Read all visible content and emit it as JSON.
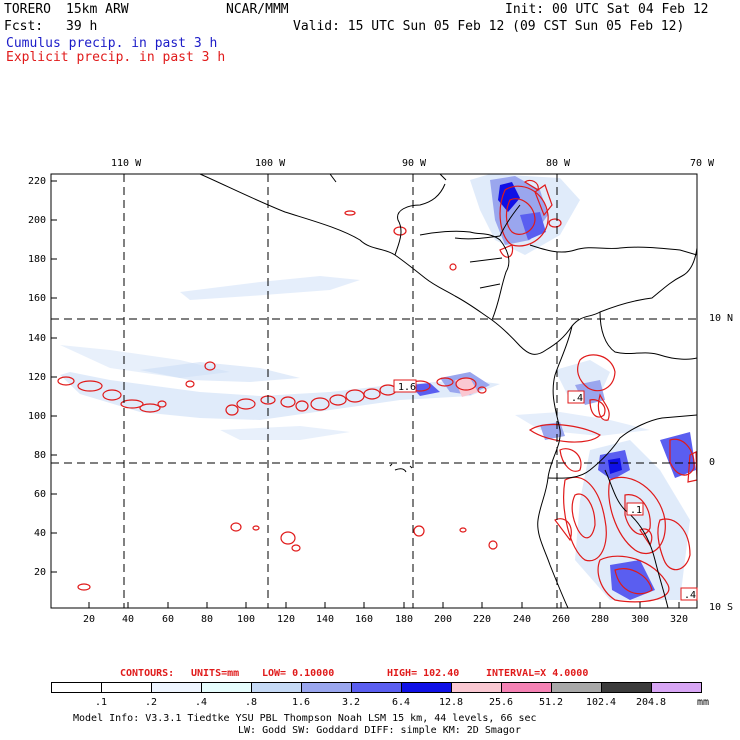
{
  "header": {
    "model": "TORERO",
    "resolution": "15km ARW",
    "org": "NCAR/MMM",
    "init": "Init: 00 UTC Sat 04 Feb 12",
    "fcst_label": "Fcst:",
    "fcst_value": "39 h",
    "valid": "Valid: 15 UTC Sun 05 Feb 12 (09 CST Sun 05 Feb 12)",
    "line_cumulus": "Cumulus precip. in past 3 h",
    "line_explicit": "Explicit precip. in past 3 h"
  },
  "axes": {
    "top_lon_labels": [
      "110 W",
      "100 W",
      "90 W",
      "80 W",
      "70 W"
    ],
    "right_lat_labels": [
      "10 N",
      "0",
      "10 S"
    ],
    "left_y_ticks": [
      "220",
      "200",
      "180",
      "160",
      "140",
      "120",
      "100",
      "80",
      "60",
      "40",
      "20"
    ],
    "bottom_x_ticks": [
      "20",
      "40",
      "60",
      "80",
      "100",
      "120",
      "140",
      "160",
      "180",
      "200",
      "220",
      "240",
      "260",
      "280",
      "300",
      "320"
    ]
  },
  "map_labels": [
    "1.6",
    ".4",
    ".1",
    ".4"
  ],
  "contours_line": {
    "label": "CONTOURS:",
    "units": "UNITS=mm",
    "low": "LOW= 0.10000",
    "high": "HIGH= 102.40",
    "interval": "INTERVAL=X 4.0000"
  },
  "legend": {
    "labels": [
      ".1",
      ".2",
      ".4",
      ".8",
      "1.6",
      "3.2",
      "6.4",
      "12.8",
      "25.6",
      "51.2",
      "102.4",
      "204.8",
      "mm"
    ],
    "colors": [
      "#ffffff",
      "#ffffff",
      "#eef5ff",
      "#e6fdfd",
      "#c6daf6",
      "#9aa6ee",
      "#5a5ef0",
      "#0f10e6",
      "#fac8d2",
      "#f582b4",
      "#a8a8a8",
      "#3c3c3c",
      "#d8a6f5"
    ]
  },
  "footer": {
    "line1": "Model Info: V3.3.1    Tiedtke YSU PBL  Thompson    Noah LSM  15 km,   44 levels,   66 sec",
    "line2": "LW: Godd SW: Goddard DIFF: simple KM: 2D Smagor"
  }
}
